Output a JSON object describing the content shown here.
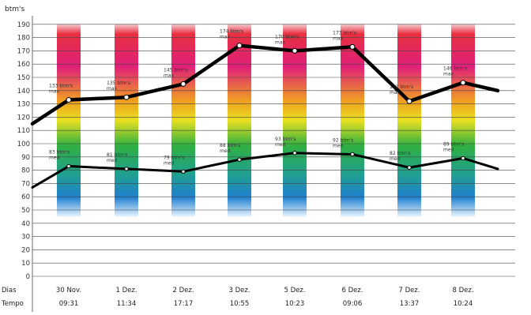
{
  "chart_data": {
    "type": "line",
    "ylabel": "btm's",
    "ylim": [
      0,
      190
    ],
    "y_ticks": [
      "0",
      "10",
      "20",
      "30",
      "40",
      "50",
      "60",
      "70",
      "80",
      "90",
      "100",
      "110",
      "120",
      "130",
      "140",
      "150",
      "160",
      "170",
      "180",
      "190"
    ],
    "row_labels": {
      "days": "Dias",
      "time": "Tempo"
    },
    "categories": [
      "30 Nov.",
      "1 Dez.",
      "2 Dez.",
      "3 Dez.",
      "5 Dez.",
      "6 Dez.",
      "7 Dez.",
      "8 Dez."
    ],
    "times": [
      "09:31",
      "11:34",
      "17:17",
      "10:55",
      "10:23",
      "09:06",
      "13:37",
      "10:24"
    ],
    "grid": true,
    "series": [
      {
        "key": "max",
        "color": "#000000",
        "start": 115,
        "end": 140,
        "values": [
          133,
          135,
          145,
          174,
          170,
          173,
          132,
          146
        ],
        "labels": [
          "133 btm's max",
          "135 btm's max",
          "145 btm's max",
          "174 btm's max",
          "170 btm's max",
          "173 btm's max",
          "132 btm's max",
          "146 btm's max"
        ]
      },
      {
        "key": "med",
        "color": "#000000",
        "start": 67,
        "end": 81,
        "values": [
          83,
          81,
          79,
          88,
          93,
          92,
          82,
          89
        ],
        "labels": [
          "83 btm's med",
          "81 btm's med",
          "79 btm's med",
          "88 btm's med",
          "93 btm's med",
          "92 btm's med",
          "82 btm's med",
          "89 btm's med"
        ]
      }
    ],
    "band_colors": [
      "#e83040",
      "#e0207a",
      "#f0a020",
      "#e8e020",
      "#30b040",
      "#20a090",
      "#2080d0",
      "#e8f4ff"
    ]
  }
}
